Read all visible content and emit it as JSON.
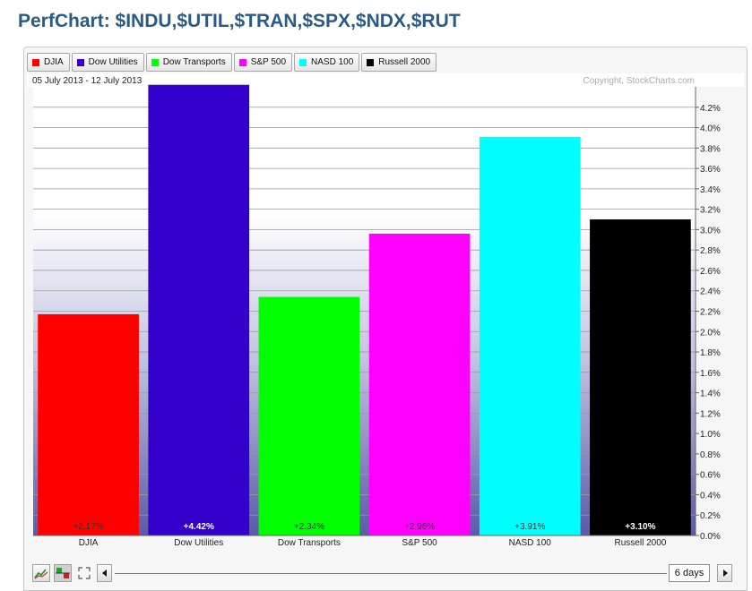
{
  "title": "PerfChart: $INDU,$UTIL,$TRAN,$SPX,$NDX,$RUT",
  "date_range": "05 July 2013 - 12 July 2013",
  "copyright": "Copyright, StockCharts.com",
  "legend": [
    {
      "label": "DJIA",
      "color": "#ff0000"
    },
    {
      "label": "Dow Utilities",
      "color": "#3300cc"
    },
    {
      "label": "Dow Transports",
      "color": "#00ff00"
    },
    {
      "label": "S&P 500",
      "color": "#ff00ff"
    },
    {
      "label": "NASD 100",
      "color": "#00ffff"
    },
    {
      "label": "Russell 2000",
      "color": "#000000"
    }
  ],
  "controls": {
    "period_label": "6 days",
    "prev_icon": "triangle-left-icon",
    "next_icon": "triangle-right-icon",
    "line_chart_icon": "line-chart-icon",
    "bar_chart_icon": "bar-chart-icon",
    "fullscreen_icon": "fullscreen-icon"
  },
  "chart_data": {
    "type": "bar",
    "categories": [
      "DJIA",
      "Dow Utilities",
      "Dow Transports",
      "S&P 500",
      "NASD 100",
      "Russell 2000"
    ],
    "values": [
      2.17,
      4.42,
      2.34,
      2.96,
      3.91,
      3.1
    ],
    "value_labels": [
      "+2.17%",
      "+4.42%",
      "+2.34%",
      "+2.96%",
      "+3.91%",
      "+3.10%"
    ],
    "colors": [
      "#ff0000",
      "#3300cc",
      "#00ff00",
      "#ff00ff",
      "#00ffff",
      "#000000"
    ],
    "label_colors": [
      "#333333",
      "#ffffff",
      "#333333",
      "#333333",
      "#333333",
      "#ffffff"
    ],
    "ylim": [
      0,
      4.4
    ],
    "yticks": [
      "0.0%",
      "0.2%",
      "0.4%",
      "0.6%",
      "0.8%",
      "1.0%",
      "1.2%",
      "1.4%",
      "1.6%",
      "1.8%",
      "2.0%",
      "2.2%",
      "2.4%",
      "2.6%",
      "2.8%",
      "3.0%",
      "3.2%",
      "3.4%",
      "3.6%",
      "3.8%",
      "4.0%",
      "4.2%"
    ],
    "ytick_step": 0.2,
    "y_axis_position": "right",
    "grid": true
  }
}
